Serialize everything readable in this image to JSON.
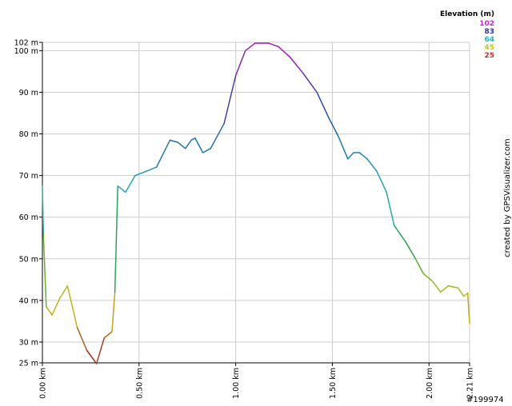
{
  "chart_data": {
    "type": "line",
    "title": "",
    "xlabel": "",
    "ylabel": "",
    "x_unit": "km",
    "y_unit": "m",
    "xlim": [
      0,
      2.21
    ],
    "ylim": [
      25,
      102
    ],
    "y_ticks": [
      {
        "value": 25,
        "label": "25 m"
      },
      {
        "value": 30,
        "label": "30 m"
      },
      {
        "value": 40,
        "label": "40 m"
      },
      {
        "value": 50,
        "label": "50 m"
      },
      {
        "value": 60,
        "label": "60 m"
      },
      {
        "value": 70,
        "label": "70 m"
      },
      {
        "value": 80,
        "label": "80 m"
      },
      {
        "value": 90,
        "label": "90 m"
      },
      {
        "value": 100,
        "label": "100 m"
      },
      {
        "value": 102,
        "label": "102 m"
      }
    ],
    "x_ticks": [
      {
        "value": 0,
        "label": "0.00 km"
      },
      {
        "value": 0.5,
        "label": "0.50 km"
      },
      {
        "value": 1.0,
        "label": "1.00 km"
      },
      {
        "value": 1.5,
        "label": "1.50 km"
      },
      {
        "value": 2.0,
        "label": "2.00 km"
      },
      {
        "value": 2.21,
        "label": "2.21 km"
      }
    ],
    "grid": true,
    "legend": {
      "title": "Elevation (m)",
      "placement": "top-right",
      "entries": [
        {
          "label": "102",
          "color": "#cc22cc"
        },
        {
          "label": "83",
          "color": "#3a2fa6"
        },
        {
          "label": "64",
          "color": "#22b8b8"
        },
        {
          "label": "45",
          "color": "#b8c81e"
        },
        {
          "label": "25",
          "color": "#c0302a"
        }
      ]
    },
    "colors": {
      "low": "#a02020",
      "midlow": "#c8c020",
      "mid": "#30a040",
      "midhigh": "#22b0c0",
      "high": "#2050a0",
      "top": "#a020b0"
    },
    "series": [
      {
        "x": [
          0.0,
          0.005,
          0.02,
          0.05,
          0.09,
          0.13,
          0.18,
          0.23,
          0.28,
          0.32,
          0.36,
          0.375,
          0.39,
          0.43,
          0.48,
          0.59,
          0.66,
          0.7,
          0.74,
          0.77,
          0.79,
          0.83,
          0.87,
          0.94,
          1.0,
          1.05,
          1.1,
          1.17,
          1.22,
          1.28,
          1.35,
          1.42,
          1.48,
          1.53,
          1.58,
          1.61,
          1.64,
          1.68,
          1.73,
          1.78,
          1.82,
          1.85,
          1.88,
          1.93,
          1.97,
          2.02,
          2.06,
          2.1,
          2.15,
          2.18,
          2.2,
          2.21
        ],
        "y": [
          67.5,
          56,
          38.5,
          36.5,
          40.5,
          43.5,
          33.5,
          28,
          24.8,
          31,
          32.5,
          42,
          67.5,
          66,
          70,
          72,
          78.5,
          78,
          76.5,
          78.5,
          79,
          75.5,
          76.5,
          82.5,
          94,
          100,
          101.8,
          101.8,
          101,
          98.5,
          94.5,
          90,
          84,
          79.5,
          74,
          75.5,
          75.5,
          74,
          71,
          66,
          58,
          56,
          54,
          50,
          46.5,
          44.5,
          42,
          43.5,
          43,
          41,
          41.8,
          34.5
        ]
      }
    ]
  },
  "credit": "created by GPSVisualizer.com",
  "stamp": "#199974"
}
